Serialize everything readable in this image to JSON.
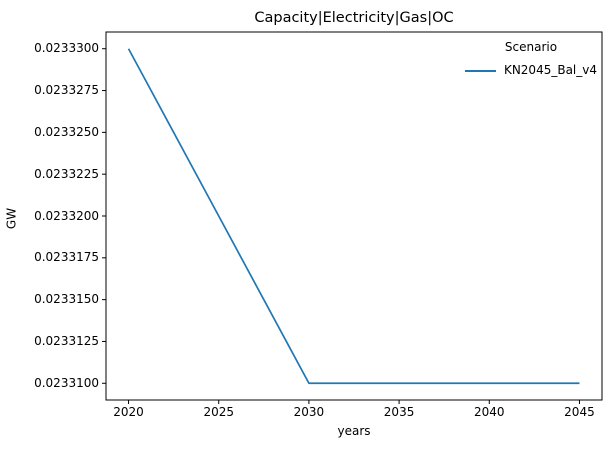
{
  "figure": {
    "background": "#ffffff",
    "text_color": "#000000"
  },
  "chart_data": {
    "type": "line",
    "title": "Capacity|Electricity|Gas|OC",
    "xlabel": "years",
    "ylabel": "GW",
    "grid": false,
    "axis_color": "#000000",
    "xlim": [
      2018.75,
      2046.25
    ],
    "ylim": [
      0.023309,
      0.023331
    ],
    "x_ticks": [
      {
        "value": 2020,
        "label": "2020"
      },
      {
        "value": 2025,
        "label": "2025"
      },
      {
        "value": 2030,
        "label": "2030"
      },
      {
        "value": 2035,
        "label": "2035"
      },
      {
        "value": 2040,
        "label": "2040"
      },
      {
        "value": 2045,
        "label": "2045"
      }
    ],
    "y_ticks": [
      {
        "value": 0.02333,
        "label": "0.0233300"
      },
      {
        "value": 0.0233275,
        "label": "0.0233275"
      },
      {
        "value": 0.023325,
        "label": "0.0233250"
      },
      {
        "value": 0.0233225,
        "label": "0.0233225"
      },
      {
        "value": 0.02332,
        "label": "0.0233200"
      },
      {
        "value": 0.0233175,
        "label": "0.0233175"
      },
      {
        "value": 0.023315,
        "label": "0.0233150"
      },
      {
        "value": 0.0233125,
        "label": "0.0233125"
      },
      {
        "value": 0.02331,
        "label": "0.0233100"
      }
    ],
    "x": [
      2020,
      2025,
      2030,
      2035,
      2040,
      2045
    ],
    "series": [
      {
        "name": "KN2045_Bal_v4",
        "color": "#1f77b4",
        "values": [
          0.02333,
          0.02332,
          0.02331,
          0.02331,
          0.02331,
          0.02331
        ]
      }
    ],
    "legend": {
      "title": "Scenario",
      "position": "upper-right",
      "frame": false
    }
  }
}
